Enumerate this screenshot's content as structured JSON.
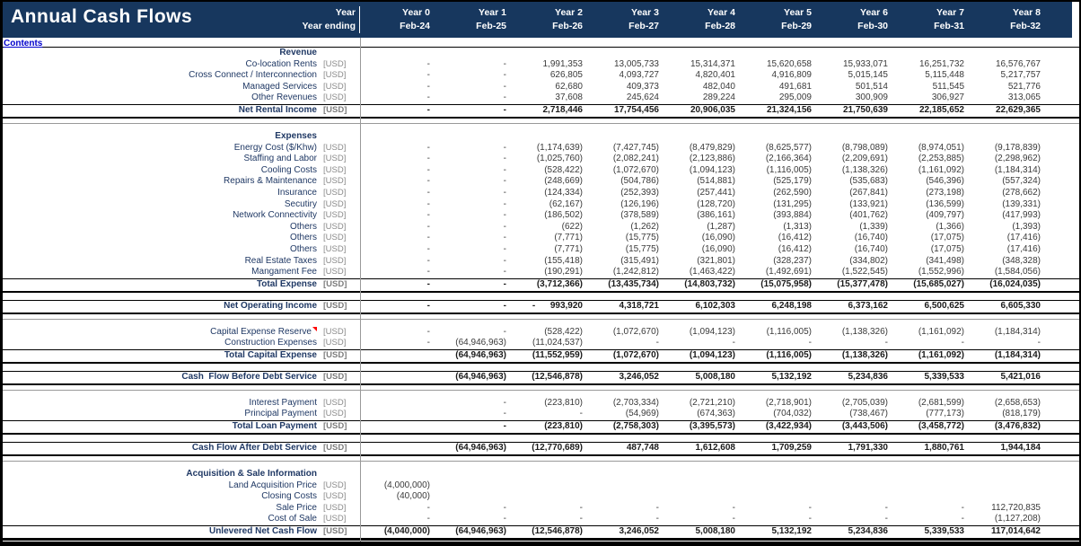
{
  "title": "Annual Cash Flows",
  "nav": {
    "contents_label": "Contents"
  },
  "header": {
    "year_label": "Year",
    "year_ending_label": "Year ending",
    "columns": [
      {
        "year": "Year 0",
        "ending": "Feb-24"
      },
      {
        "year": "Year 1",
        "ending": "Feb-25"
      },
      {
        "year": "Year 2",
        "ending": "Feb-26"
      },
      {
        "year": "Year 3",
        "ending": "Feb-27"
      },
      {
        "year": "Year 4",
        "ending": "Feb-28"
      },
      {
        "year": "Year 5",
        "ending": "Feb-29"
      },
      {
        "year": "Year 6",
        "ending": "Feb-30"
      },
      {
        "year": "Year 7",
        "ending": "Feb-31"
      },
      {
        "year": "Year 8",
        "ending": "Feb-32"
      }
    ]
  },
  "colors": {
    "band_bg": "#17375E",
    "label_text": "#1F3864",
    "number_text": "#3a3a3a",
    "unit_text": "#8a8a8a",
    "link": "#0000CC",
    "comment_marker": "#FF0000",
    "grid_line": "#999999"
  },
  "table": {
    "rows": [
      {
        "style": "section",
        "label": "Revenue"
      },
      {
        "style": "item",
        "label": "Co-location Rents",
        "unit": "[USD]",
        "values": [
          "-",
          "-",
          "1,991,353",
          "13,005,733",
          "15,314,371",
          "15,620,658",
          "15,933,071",
          "16,251,732",
          "16,576,767"
        ]
      },
      {
        "style": "item",
        "label": "Cross Connect / Interconnection",
        "unit": "[USD]",
        "values": [
          "-",
          "-",
          "626,805",
          "4,093,727",
          "4,820,401",
          "4,916,809",
          "5,015,145",
          "5,115,448",
          "5,217,757"
        ]
      },
      {
        "style": "item",
        "label": "Managed Services",
        "unit": "[USD]",
        "values": [
          "-",
          "-",
          "62,680",
          "409,373",
          "482,040",
          "491,681",
          "501,514",
          "511,545",
          "521,776"
        ]
      },
      {
        "style": "item",
        "label": "Other Revenues",
        "unit": "[USD]",
        "values": [
          "-",
          "-",
          "37,608",
          "245,624",
          "289,224",
          "295,009",
          "300,909",
          "306,927",
          "313,065"
        ]
      },
      {
        "style": "total",
        "label": "Net Rental Income",
        "unit": "[USD]",
        "values": [
          "-",
          "-",
          "2,718,446",
          "17,754,456",
          "20,906,035",
          "21,324,156",
          "21,750,639",
          "22,185,652",
          "22,629,365"
        ]
      },
      {
        "style": "spacer_line"
      },
      {
        "style": "spacer"
      },
      {
        "style": "section",
        "label": "Expenses"
      },
      {
        "style": "item",
        "label": "Energy Cost ($/Khw)",
        "unit": "[USD]",
        "values": [
          "-",
          "-",
          "(1,174,639)",
          "(7,427,745)",
          "(8,479,829)",
          "(8,625,577)",
          "(8,798,089)",
          "(8,974,051)",
          "(9,178,839)"
        ]
      },
      {
        "style": "item",
        "label": "Staffing and Labor",
        "unit": "[USD]",
        "values": [
          "-",
          "-",
          "(1,025,760)",
          "(2,082,241)",
          "(2,123,886)",
          "(2,166,364)",
          "(2,209,691)",
          "(2,253,885)",
          "(2,298,962)"
        ]
      },
      {
        "style": "item",
        "label": "Cooling Costs",
        "unit": "[USD]",
        "values": [
          "-",
          "-",
          "(528,422)",
          "(1,072,670)",
          "(1,094,123)",
          "(1,116,005)",
          "(1,138,326)",
          "(1,161,092)",
          "(1,184,314)"
        ]
      },
      {
        "style": "item",
        "label": "Repairs & Maintenance",
        "unit": "[USD]",
        "values": [
          "-",
          "-",
          "(248,669)",
          "(504,786)",
          "(514,881)",
          "(525,179)",
          "(535,683)",
          "(546,396)",
          "(557,324)"
        ]
      },
      {
        "style": "item",
        "label": "Insurance",
        "unit": "[USD]",
        "values": [
          "-",
          "-",
          "(124,334)",
          "(252,393)",
          "(257,441)",
          "(262,590)",
          "(267,841)",
          "(273,198)",
          "(278,662)"
        ]
      },
      {
        "style": "item",
        "label": "Secutiry",
        "unit": "[USD]",
        "values": [
          "-",
          "-",
          "(62,167)",
          "(126,196)",
          "(128,720)",
          "(131,295)",
          "(133,921)",
          "(136,599)",
          "(139,331)"
        ]
      },
      {
        "style": "item",
        "label": "Network Connectivity",
        "unit": "[USD]",
        "values": [
          "-",
          "-",
          "(186,502)",
          "(378,589)",
          "(386,161)",
          "(393,884)",
          "(401,762)",
          "(409,797)",
          "(417,993)"
        ]
      },
      {
        "style": "item",
        "label": "Others",
        "unit": "[USD]",
        "values": [
          "-",
          "-",
          "(622)",
          "(1,262)",
          "(1,287)",
          "(1,313)",
          "(1,339)",
          "(1,366)",
          "(1,393)"
        ]
      },
      {
        "style": "item",
        "label": "Others",
        "unit": "[USD]",
        "values": [
          "-",
          "-",
          "(7,771)",
          "(15,775)",
          "(16,090)",
          "(16,412)",
          "(16,740)",
          "(17,075)",
          "(17,416)"
        ]
      },
      {
        "style": "item",
        "label": "Others",
        "unit": "[USD]",
        "values": [
          "-",
          "-",
          "(7,771)",
          "(15,775)",
          "(16,090)",
          "(16,412)",
          "(16,740)",
          "(17,075)",
          "(17,416)"
        ]
      },
      {
        "style": "item",
        "label": "Real Estate Taxes",
        "unit": "[USD]",
        "values": [
          "-",
          "-",
          "(155,418)",
          "(315,491)",
          "(321,801)",
          "(328,237)",
          "(334,802)",
          "(341,498)",
          "(348,328)"
        ]
      },
      {
        "style": "item",
        "label": "Mangament Fee",
        "unit": "[USD]",
        "values": [
          "-",
          "-",
          "(190,291)",
          "(1,242,812)",
          "(1,463,422)",
          "(1,492,691)",
          "(1,522,545)",
          "(1,552,996)",
          "(1,584,056)"
        ]
      },
      {
        "style": "total",
        "label": "Total Expense",
        "unit": "[USD]",
        "values": [
          "-",
          "-",
          "(3,712,366)",
          "(13,435,734)",
          "(14,803,732)",
          "(15,075,958)",
          "(15,377,478)",
          "(15,685,027)",
          "(16,024,035)"
        ]
      },
      {
        "style": "spacer"
      },
      {
        "style": "total",
        "label": "Net Operating Income",
        "unit": "[USD]",
        "values": [
          "-",
          "-",
          "-      993,920",
          "4,318,721",
          "6,102,303",
          "6,248,198",
          "6,373,162",
          "6,500,625",
          "6,605,330"
        ]
      },
      {
        "style": "spacer_line"
      },
      {
        "style": "spacer"
      },
      {
        "style": "item",
        "label": "Capital Expense Reserve",
        "unit": "[USD]",
        "marker": true,
        "values": [
          "-",
          "-",
          "(528,422)",
          "(1,072,670)",
          "(1,094,123)",
          "(1,116,005)",
          "(1,138,326)",
          "(1,161,092)",
          "(1,184,314)"
        ]
      },
      {
        "style": "item",
        "label": "Construction Expenses",
        "unit": "[USD]",
        "values": [
          "-",
          "(64,946,963)",
          "(11,024,537)",
          "-",
          "-",
          "-",
          "-",
          "-",
          "-"
        ]
      },
      {
        "style": "total",
        "label": "Total Capital Expense",
        "unit": "[USD]",
        "values": [
          "",
          "(64,946,963)",
          "(11,552,959)",
          "(1,072,670)",
          "(1,094,123)",
          "(1,116,005)",
          "(1,138,326)",
          "(1,161,092)",
          "(1,184,314)"
        ]
      },
      {
        "style": "spacer"
      },
      {
        "style": "total",
        "label": "Cash  Flow Before Debt Service",
        "unit": "[USD]",
        "values": [
          "",
          "(64,946,963)",
          "(12,546,878)",
          "3,246,052",
          "5,008,180",
          "5,132,192",
          "5,234,836",
          "5,339,533",
          "5,421,016"
        ]
      },
      {
        "style": "spacer_line"
      },
      {
        "style": "spacer"
      },
      {
        "style": "item",
        "label": "Interest Payment",
        "unit": "[USD]",
        "values": [
          "",
          "-",
          "(223,810)",
          "(2,703,334)",
          "(2,721,210)",
          "(2,718,901)",
          "(2,705,039)",
          "(2,681,599)",
          "(2,658,653)"
        ]
      },
      {
        "style": "item",
        "label": "Principal Payment",
        "unit": "[USD]",
        "values": [
          "",
          "-",
          "-",
          "(54,969)",
          "(674,363)",
          "(704,032)",
          "(738,467)",
          "(777,173)",
          "(818,179)"
        ]
      },
      {
        "style": "total",
        "label": "Total Loan Payment",
        "unit": "[USD]",
        "values": [
          "",
          "-",
          "(223,810)",
          "(2,758,303)",
          "(3,395,573)",
          "(3,422,934)",
          "(3,443,506)",
          "(3,458,772)",
          "(3,476,832)"
        ]
      },
      {
        "style": "spacer"
      },
      {
        "style": "total",
        "label": "Cash Flow After Debt Service",
        "unit": "[USD]",
        "values": [
          "",
          "(64,946,963)",
          "(12,770,689)",
          "487,748",
          "1,612,608",
          "1,709,259",
          "1,791,330",
          "1,880,761",
          "1,944,184"
        ]
      },
      {
        "style": "spacer_line"
      },
      {
        "style": "spacer"
      },
      {
        "style": "section",
        "label": "Acquisition & Sale Information"
      },
      {
        "style": "item",
        "label": "Land Acquisition Price",
        "unit": "[USD]",
        "values": [
          "(4,000,000)",
          "",
          "",
          "",
          "",
          "",
          "",
          "",
          ""
        ]
      },
      {
        "style": "item",
        "label": "Closing Costs",
        "unit": "[USD]",
        "values": [
          "(40,000)",
          "",
          "",
          "",
          "",
          "",
          "",
          "",
          ""
        ]
      },
      {
        "style": "item",
        "label": "Sale Price",
        "unit": "[USD]",
        "values": [
          "-",
          "-",
          "-",
          "-",
          "-",
          "-",
          "-",
          "-",
          "112,720,835"
        ]
      },
      {
        "style": "item",
        "label": "Cost of Sale",
        "unit": "[USD]",
        "values": [
          "-",
          "-",
          "-",
          "-",
          "-",
          "-",
          "-",
          "-",
          "(1,127,208)"
        ]
      },
      {
        "style": "grand",
        "label": "Unlevered Net Cash Flow",
        "unit": "[USD]",
        "values": [
          "(4,040,000)",
          "(64,946,963)",
          "(12,546,878)",
          "3,246,052",
          "5,008,180",
          "5,132,192",
          "5,234,836",
          "5,339,533",
          "117,014,642"
        ]
      }
    ]
  }
}
